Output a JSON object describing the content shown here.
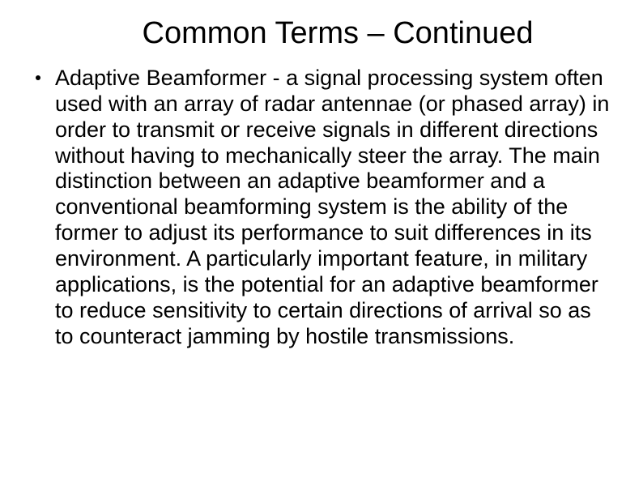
{
  "slide": {
    "title": "Common Terms – Continued",
    "title_fontsize": 38,
    "title_color": "#000000",
    "body": "Adaptive Beamformer - a signal processing system often used with an array of radar antennae (or phased array) in order to transmit or receive signals in different directions without having to mechanically steer the array. The main distinction between an adaptive beamformer and a conventional beamforming system is the ability of the former to adjust its performance to suit differences in its environment. A particularly important feature, in military applications, is the potential for an adaptive beamformer to reduce sensitivity to certain directions of arrival so as to counteract jamming by hostile transmissions.",
    "body_fontsize": 27,
    "body_color": "#000000",
    "background_color": "#ffffff",
    "bullet_color": "#000000"
  }
}
